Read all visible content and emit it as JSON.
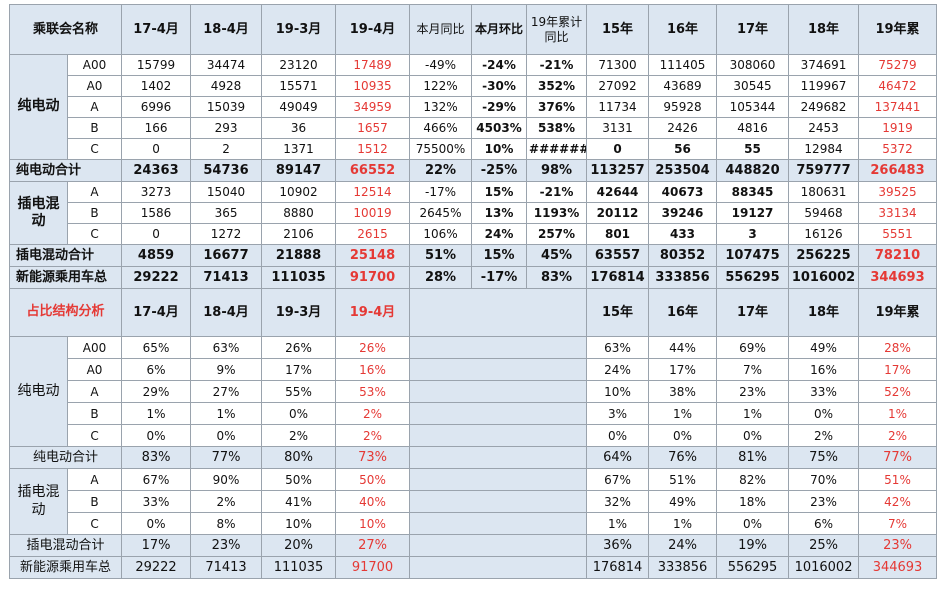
{
  "header": {
    "label": "乘联会名称",
    "cols": [
      "17-4月",
      "18-4月",
      "19-3月",
      "19-4月",
      "本月同比",
      "本月环比",
      "19年累计同比",
      "15年",
      "16年",
      "17年",
      "18年",
      "19年累"
    ]
  },
  "sections": {
    "bev": "纯电动",
    "phev": "插电混动",
    "ratio": "占比结构分析"
  },
  "grade_labels": [
    "A00",
    "A0",
    "A",
    "B",
    "C"
  ],
  "phev_grade_labels": [
    "A",
    "B",
    "C"
  ],
  "volume": {
    "bev_rows": [
      [
        "15799",
        "34474",
        "23120",
        "17489",
        "-49%",
        "-24%",
        "-21%",
        "71300",
        "111405",
        "308060",
        "374691",
        "75279"
      ],
      [
        "1402",
        "4928",
        "15571",
        "10935",
        "122%",
        "-30%",
        "352%",
        "27092",
        "43689",
        "30545",
        "119967",
        "46472"
      ],
      [
        "6996",
        "15039",
        "49049",
        "34959",
        "132%",
        "-29%",
        "376%",
        "11734",
        "95928",
        "105344",
        "249682",
        "137441"
      ],
      [
        "166",
        "293",
        "36",
        "1657",
        "466%",
        "4503%",
        "538%",
        "3131",
        "2426",
        "4816",
        "2453",
        "1919"
      ],
      [
        "0",
        "2",
        "1371",
        "1512",
        "75500%",
        "10%",
        "######",
        "0",
        "56",
        "55",
        "12984",
        "5372"
      ]
    ],
    "bev_total": {
      "label": "纯电动合计",
      "values": [
        "24363",
        "54736",
        "89147",
        "66552",
        "22%",
        "-25%",
        "98%",
        "113257",
        "253504",
        "448820",
        "759777",
        "266483"
      ]
    },
    "phev_rows": [
      [
        "3273",
        "15040",
        "10902",
        "12514",
        "-17%",
        "15%",
        "-21%",
        "42644",
        "40673",
        "88345",
        "180631",
        "39525"
      ],
      [
        "1586",
        "365",
        "8880",
        "10019",
        "2645%",
        "13%",
        "1193%",
        "20112",
        "39246",
        "19127",
        "59468",
        "33134"
      ],
      [
        "0",
        "1272",
        "2106",
        "2615",
        "106%",
        "24%",
        "257%",
        "801",
        "433",
        "3",
        "16126",
        "5551"
      ]
    ],
    "phev_total": {
      "label": "插电混动合计",
      "values": [
        "4859",
        "16677",
        "21888",
        "25148",
        "51%",
        "15%",
        "45%",
        "63557",
        "80352",
        "107475",
        "256225",
        "78210"
      ]
    },
    "nev_total": {
      "label": "新能源乘用车总",
      "values": [
        "29222",
        "71413",
        "111035",
        "91700",
        "28%",
        "-17%",
        "83%",
        "176814",
        "333856",
        "556295",
        "1016002",
        "344693"
      ]
    }
  },
  "share_header": {
    "cols": [
      "17-4月",
      "18-4月",
      "19-3月",
      "19-4月",
      "15年",
      "16年",
      "17年",
      "18年",
      "19年累"
    ]
  },
  "share": {
    "bev_rows": [
      [
        "65%",
        "63%",
        "26%",
        "26%",
        "63%",
        "44%",
        "69%",
        "49%",
        "28%"
      ],
      [
        "6%",
        "9%",
        "17%",
        "16%",
        "24%",
        "17%",
        "7%",
        "16%",
        "17%"
      ],
      [
        "29%",
        "27%",
        "55%",
        "53%",
        "10%",
        "38%",
        "23%",
        "33%",
        "52%"
      ],
      [
        "1%",
        "1%",
        "0%",
        "2%",
        "3%",
        "1%",
        "1%",
        "0%",
        "1%"
      ],
      [
        "0%",
        "0%",
        "2%",
        "2%",
        "0%",
        "0%",
        "0%",
        "2%",
        "2%"
      ]
    ],
    "bev_total": {
      "label": "纯电动合计",
      "values": [
        "83%",
        "77%",
        "80%",
        "73%",
        "64%",
        "76%",
        "81%",
        "75%",
        "77%"
      ]
    },
    "phev_rows": [
      [
        "67%",
        "90%",
        "50%",
        "50%",
        "67%",
        "51%",
        "82%",
        "70%",
        "51%"
      ],
      [
        "33%",
        "2%",
        "41%",
        "40%",
        "32%",
        "49%",
        "18%",
        "23%",
        "42%"
      ],
      [
        "0%",
        "8%",
        "10%",
        "10%",
        "1%",
        "1%",
        "0%",
        "6%",
        "7%"
      ]
    ],
    "phev_total": {
      "label": "插电混动合计",
      "values": [
        "17%",
        "23%",
        "20%",
        "27%",
        "36%",
        "24%",
        "19%",
        "25%",
        "23%"
      ]
    },
    "nev_total": {
      "label": "新能源乘用车总",
      "values": [
        "29222",
        "71413",
        "111035",
        "91700",
        "176814",
        "333856",
        "556295",
        "1016002",
        "344693"
      ]
    }
  },
  "colors": {
    "header_bg": "#dce6f1",
    "highlight": "#e53935",
    "border": "#9aa3ad"
  }
}
